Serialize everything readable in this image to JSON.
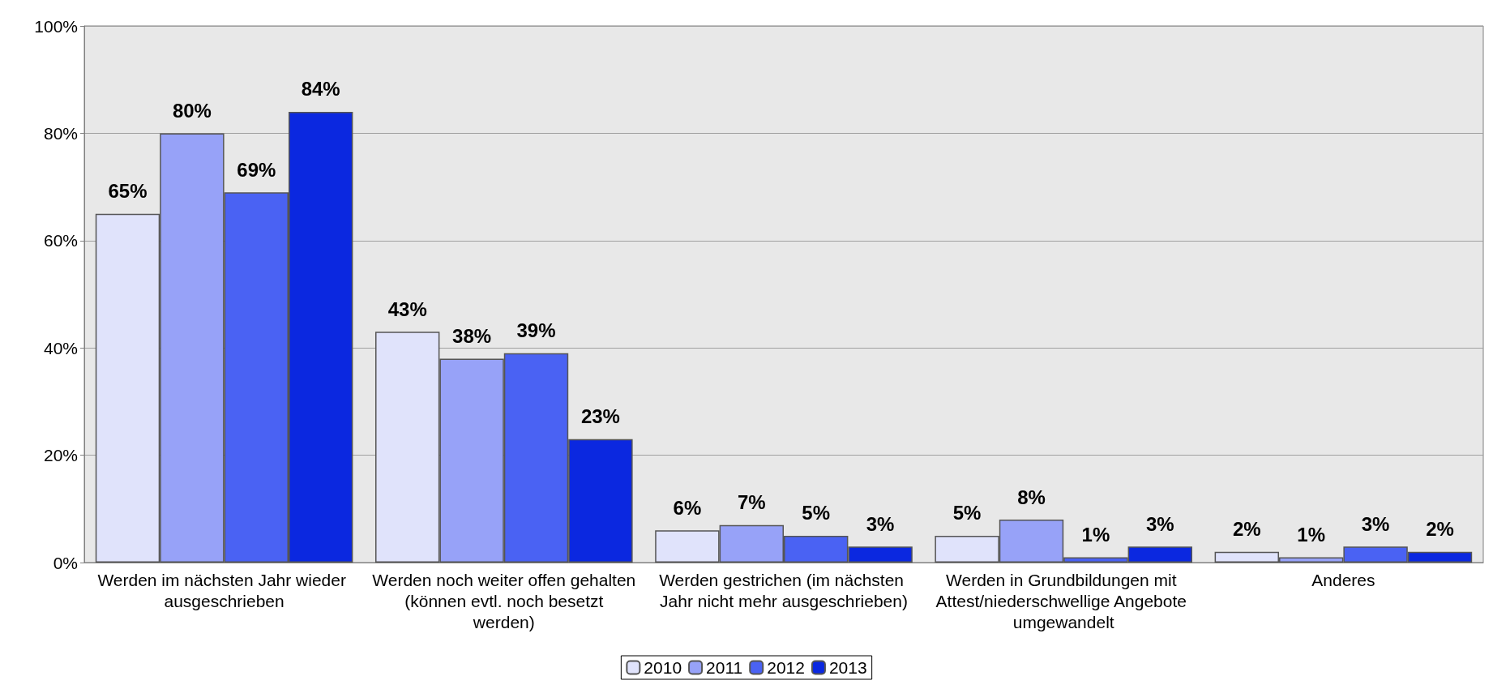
{
  "chart_data": {
    "type": "bar",
    "categories": [
      "Werden im nächsten Jahr wieder ausgeschrieben",
      "Werden noch weiter offen gehalten (können evtl. noch besetzt werden)",
      "Werden gestrichen (im nächsten Jahr nicht mehr ausgeschrieben)",
      "Werden in Grundbildungen mit Attest/niederschwellige Angebote umgewandelt",
      "Anderes"
    ],
    "series": [
      {
        "name": "2010",
        "color": "#e0e3fb",
        "values": [
          65,
          43,
          6,
          5,
          2
        ],
        "value_labels": [
          "65%",
          "43%",
          "6%",
          "5%",
          "2%"
        ]
      },
      {
        "name": "2011",
        "color": "#97a2f8",
        "values": [
          80,
          38,
          7,
          8,
          1
        ],
        "value_labels": [
          "80%",
          "38%",
          "7%",
          "8%",
          "1%"
        ]
      },
      {
        "name": "2012",
        "color": "#4a62f3",
        "values": [
          69,
          39,
          5,
          1,
          3
        ],
        "value_labels": [
          "69%",
          "39%",
          "5%",
          "1%",
          "3%"
        ]
      },
      {
        "name": "2013",
        "color": "#0b28e0",
        "values": [
          84,
          23,
          3,
          3,
          2
        ],
        "value_labels": [
          "84%",
          "23%",
          "3%",
          "3%",
          "2%"
        ]
      }
    ],
    "ylim": [
      0,
      100
    ],
    "yticks": [
      {
        "value": 0,
        "label": "0%"
      },
      {
        "value": 20,
        "label": "20%"
      },
      {
        "value": 40,
        "label": "40%"
      },
      {
        "value": 60,
        "label": "60%"
      },
      {
        "value": 80,
        "label": "80%"
      },
      {
        "value": 100,
        "label": "100%"
      }
    ],
    "grid": "y",
    "legend": "bottom"
  }
}
